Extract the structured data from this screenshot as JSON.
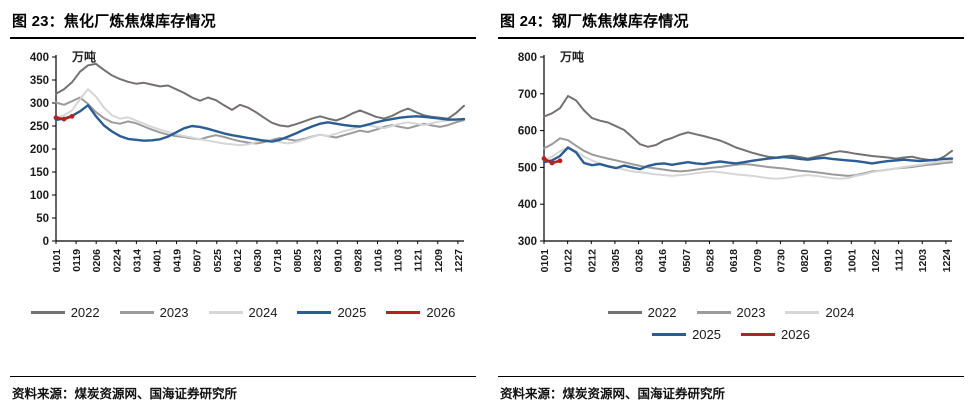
{
  "page": {
    "background": "#ffffff"
  },
  "colors": {
    "axis": "#000000",
    "y2022": "#767171",
    "y2023": "#9b9b9b",
    "y2024": "#d6d6d6",
    "y2025": "#2b5d93",
    "y2026": "#b22222"
  },
  "charts": [
    {
      "title": "图 23：焦化厂炼焦煤库存情况",
      "unit_label": "万吨",
      "source": "资料来源：煤炭资源网、国海证券研究所",
      "chart_data": {
        "type": "line",
        "title": "焦化厂炼焦煤库存情况",
        "ylabel": "万吨",
        "ylim": [
          0,
          400
        ],
        "ytick_step": 50,
        "grid": false,
        "legend_position": "bottom",
        "x_tick_labels": [
          "0101",
          "0119",
          "0206",
          "0224",
          "0314",
          "0401",
          "0419",
          "0507",
          "0525",
          "0612",
          "0630",
          "0718",
          "0805",
          "0823",
          "0910",
          "0928",
          "1016",
          "1103",
          "1121",
          "1209",
          "1227"
        ],
        "series": [
          {
            "name": "2022",
            "color": "#767171",
            "width": 2,
            "values": [
              320,
              330,
              345,
              368,
              382,
              385,
              372,
              360,
              352,
              346,
              342,
              344,
              340,
              336,
              338,
              330,
              322,
              312,
              305,
              312,
              306,
              295,
              285,
              296,
              290,
              280,
              268,
              257,
              251,
              249,
              254,
              260,
              266,
              271,
              266,
              262,
              268,
              277,
              284,
              277,
              270,
              266,
              272,
              281,
              288,
              280,
              273,
              270,
              268,
              266,
              278,
              294
            ]
          },
          {
            "name": "2023",
            "color": "#9b9b9b",
            "width": 2,
            "values": [
              301,
              296,
              304,
              312,
              298,
              280,
              267,
              258,
              255,
              260,
              256,
              249,
              242,
              236,
              231,
              228,
              226,
              223,
              221,
              226,
              230,
              226,
              221,
              217,
              214,
              212,
              215,
              220,
              224,
              221,
              218,
              222,
              227,
              231,
              228,
              225,
              230,
              235,
              240,
              237,
              242,
              248,
              252,
              248,
              245,
              250,
              255,
              251,
              248,
              252,
              258,
              263
            ]
          },
          {
            "name": "2024",
            "color": "#d6d6d6",
            "width": 2,
            "values": [
              268,
              273,
              284,
              308,
              330,
              314,
              290,
              273,
              266,
              269,
              262,
              255,
              248,
              242,
              237,
              232,
              228,
              225,
              221,
              218,
              215,
              212,
              210,
              208,
              210,
              215,
              220,
              218,
              215,
              212,
              215,
              220,
              226,
              231,
              228,
              233,
              239,
              243,
              248,
              252,
              248,
              245,
              250,
              255,
              258,
              255,
              252,
              256,
              260,
              262,
              263,
              265
            ]
          },
          {
            "name": "2025",
            "color": "#2b5d93",
            "width": 2.4,
            "values": [
              263,
              266,
              272,
              282,
              295,
              271,
              251,
              238,
              228,
              222,
              220,
              218,
              219,
              221,
              227,
              236,
              245,
              250,
              248,
              244,
              239,
              234,
              230,
              227,
              224,
              221,
              218,
              216,
              220,
              227,
              234,
              242,
              249,
              255,
              258,
              255,
              252,
              250,
              249,
              253,
              258,
              262,
              265,
              268,
              270,
              271,
              270,
              268,
              266,
              264,
              264,
              265
            ]
          },
          {
            "name": "2026",
            "color": "#b22222",
            "width": 2.6,
            "marker": true,
            "values": [
              268,
              265,
              271
            ]
          }
        ]
      }
    },
    {
      "title": "图 24：钢厂炼焦煤库存情况",
      "unit_label": "万吨",
      "source": "资料来源：煤炭资源网、国海证券研究所",
      "chart_data": {
        "type": "line",
        "title": "钢厂炼焦煤库存情况",
        "ylabel": "万吨",
        "ylim": [
          300,
          800
        ],
        "ytick_step": 100,
        "grid": false,
        "legend_position": "bottom",
        "x_tick_labels": [
          "0101",
          "0122",
          "0212",
          "0305",
          "0326",
          "0416",
          "0507",
          "0528",
          "0618",
          "0709",
          "0730",
          "0820",
          "0910",
          "1001",
          "1022",
          "1112",
          "1203",
          "1224"
        ],
        "series": [
          {
            "name": "2022",
            "color": "#767171",
            "width": 2,
            "values": [
              638,
              647,
              661,
              694,
              682,
              655,
              634,
              627,
              622,
              612,
              602,
              583,
              563,
              556,
              561,
              573,
              580,
              589,
              595,
              590,
              585,
              579,
              573,
              564,
              554,
              547,
              540,
              534,
              529,
              527,
              530,
              532,
              528,
              524,
              529,
              534,
              540,
              544,
              541,
              537,
              534,
              531,
              529,
              527,
              524,
              527,
              529,
              524,
              521,
              519,
              529,
              545
            ]
          },
          {
            "name": "2023",
            "color": "#9b9b9b",
            "width": 2,
            "values": [
              552,
              563,
              579,
              574,
              559,
              545,
              535,
              529,
              524,
              519,
              514,
              509,
              504,
              500,
              497,
              494,
              491,
              489,
              491,
              494,
              497,
              499,
              501,
              504,
              507,
              509,
              507,
              504,
              501,
              499,
              497,
              494,
              491,
              489,
              487,
              484,
              481,
              479,
              477,
              479,
              484,
              489,
              491,
              494,
              497,
              499,
              501,
              504,
              507,
              509,
              512,
              514
            ]
          },
          {
            "name": "2024",
            "color": "#d6d6d6",
            "width": 2,
            "values": [
              519,
              529,
              544,
              554,
              544,
              529,
              519,
              511,
              504,
              499,
              494,
              489,
              487,
              484,
              481,
              479,
              477,
              479,
              481,
              484,
              487,
              489,
              487,
              484,
              481,
              479,
              477,
              474,
              471,
              469,
              471,
              474,
              477,
              479,
              477,
              474,
              471,
              469,
              471,
              477,
              481,
              487,
              491,
              494,
              497,
              501,
              504,
              507,
              511,
              514,
              516,
              519
            ]
          },
          {
            "name": "2025",
            "color": "#2b5d93",
            "width": 2.4,
            "values": [
              514,
              519,
              531,
              554,
              541,
              512,
              506,
              509,
              503,
              498,
              505,
              500,
              495,
              504,
              509,
              511,
              507,
              511,
              514,
              511,
              509,
              513,
              516,
              513,
              511,
              514,
              518,
              521,
              524,
              526,
              528,
              526,
              523,
              521,
              524,
              526,
              523,
              521,
              519,
              517,
              514,
              511,
              514,
              517,
              519,
              521,
              519,
              517,
              519,
              521,
              523,
              524
            ]
          },
          {
            "name": "2026",
            "color": "#b22222",
            "width": 2.6,
            "marker": true,
            "values": [
              524,
              512,
              518
            ]
          }
        ]
      }
    }
  ]
}
